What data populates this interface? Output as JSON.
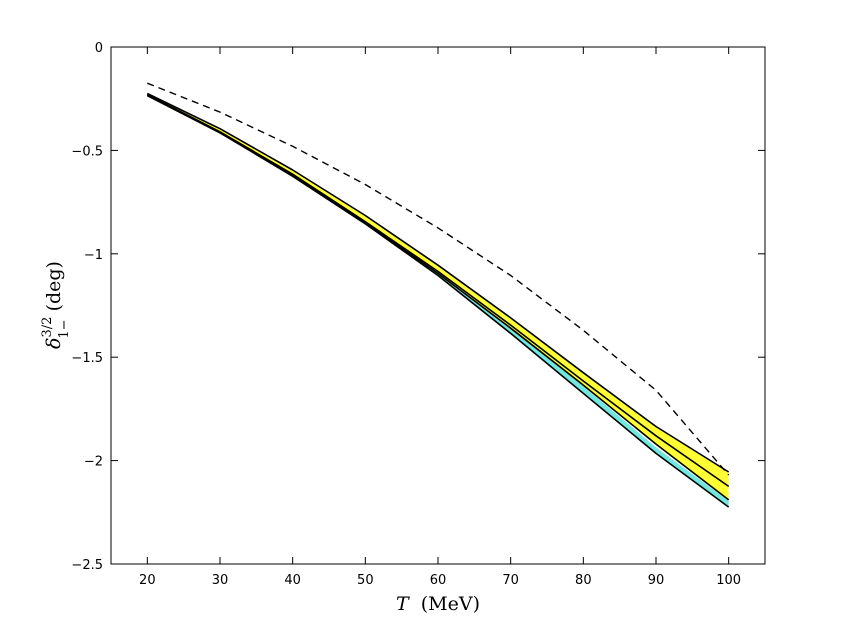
{
  "chart_data": {
    "type": "line",
    "xlabel": {
      "variable": "T",
      "unit": "(MeV)"
    },
    "ylabel": {
      "variable": "δ",
      "superscript": "3/2",
      "subscript": "1−",
      "unit": "(deg)"
    },
    "xlim": [
      15,
      105
    ],
    "ylim": [
      -2.5,
      0
    ],
    "xticks": [
      20,
      30,
      40,
      50,
      60,
      70,
      80,
      90,
      100
    ],
    "yticks": [
      0,
      -0.5,
      -1,
      -1.5,
      -2,
      -2.5
    ],
    "xtick_labels": [
      "20",
      "30",
      "40",
      "50",
      "60",
      "70",
      "80",
      "90",
      "100"
    ],
    "ytick_labels": [
      "0",
      "−0.5",
      "−1",
      "−1.5",
      "−2",
      "−2.5"
    ],
    "grid": false,
    "bands": [
      {
        "color": "#70e8e0",
        "x": [
          20,
          30,
          40,
          50,
          60,
          70,
          80,
          90,
          100
        ],
        "upper": [
          -0.225,
          -0.405,
          -0.61,
          -0.835,
          -1.085,
          -1.355,
          -1.64,
          -1.935,
          -2.195
        ],
        "lower": [
          -0.235,
          -0.415,
          -0.625,
          -0.855,
          -1.105,
          -1.385,
          -1.675,
          -1.965,
          -2.225
        ]
      },
      {
        "color": "#ffff33",
        "x": [
          20,
          30,
          40,
          50,
          60,
          70,
          80,
          90,
          100
        ],
        "upper": [
          -0.225,
          -0.395,
          -0.595,
          -0.815,
          -1.055,
          -1.31,
          -1.575,
          -1.835,
          -2.055
        ],
        "lower": [
          -0.235,
          -0.415,
          -0.62,
          -0.85,
          -1.095,
          -1.36,
          -1.635,
          -1.92,
          -2.19
        ]
      }
    ],
    "series": [
      {
        "style": "dashed",
        "color": "#000000",
        "x": [
          20,
          30,
          40,
          50,
          60,
          70,
          80,
          90,
          100
        ],
        "values": [
          -0.175,
          -0.315,
          -0.48,
          -0.665,
          -0.875,
          -1.105,
          -1.37,
          -1.66,
          -2.07
        ]
      },
      {
        "style": "solid",
        "color": "#000000",
        "x": [
          20,
          30,
          40,
          50,
          60,
          70,
          80,
          90,
          100
        ],
        "values": [
          -0.23,
          -0.41,
          -0.615,
          -0.845,
          -1.085,
          -1.345,
          -1.615,
          -1.88,
          -2.125
        ]
      },
      {
        "style": "solid",
        "color": "#000000",
        "x": [
          20,
          30,
          40,
          50,
          60,
          70,
          80,
          90,
          100
        ],
        "values": [
          -0.225,
          -0.395,
          -0.595,
          -0.815,
          -1.055,
          -1.31,
          -1.575,
          -1.835,
          -2.055
        ]
      },
      {
        "style": "solid",
        "color": "#000000",
        "x": [
          20,
          30,
          40,
          50,
          60,
          70,
          80,
          90,
          100
        ],
        "values": [
          -0.235,
          -0.415,
          -0.62,
          -0.85,
          -1.095,
          -1.36,
          -1.635,
          -1.92,
          -2.19
        ]
      },
      {
        "style": "solid",
        "color": "#000000",
        "x": [
          20,
          30,
          40,
          50,
          60,
          70,
          80,
          90,
          100
        ],
        "values": [
          -0.235,
          -0.415,
          -0.625,
          -0.855,
          -1.105,
          -1.385,
          -1.675,
          -1.965,
          -2.225
        ]
      }
    ]
  }
}
